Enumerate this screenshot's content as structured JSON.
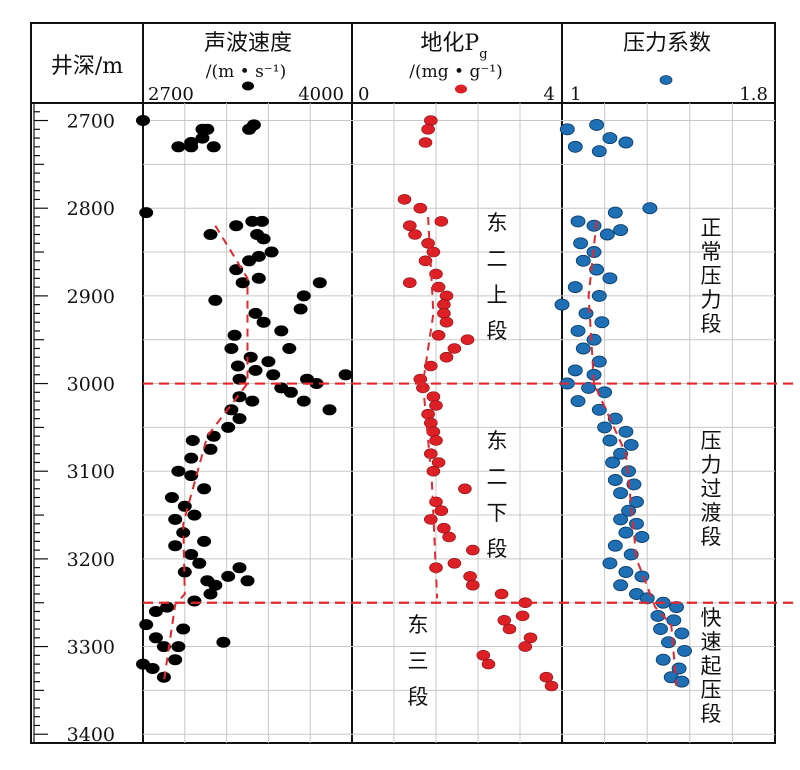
{
  "chart_data": [
    {
      "type": "scatter",
      "id": "velocity",
      "title": "声波速度",
      "unit": "/(m • s⁻¹)",
      "xlim": [
        2700,
        4000
      ],
      "tick_labels": [
        "2700",
        "4000"
      ],
      "marker_color": "#000000",
      "trend": [
        [
          3150,
          2820
        ],
        [
          3350,
          2880
        ],
        [
          3350,
          3000
        ],
        [
          3100,
          3060
        ],
        [
          2950,
          3160
        ],
        [
          2960,
          3240
        ],
        [
          2900,
          3252
        ],
        [
          2830,
          3340
        ]
      ],
      "points": [
        [
          2700,
          2700
        ],
        [
          3070,
          2710
        ],
        [
          3100,
          2710
        ],
        [
          3390,
          2705
        ],
        [
          3070,
          2720
        ],
        [
          2920,
          2730
        ],
        [
          3000,
          2730
        ],
        [
          3000,
          2725
        ],
        [
          3360,
          2710
        ],
        [
          3140,
          2730
        ],
        [
          2720,
          2805
        ],
        [
          3120,
          2830
        ],
        [
          3380,
          2815
        ],
        [
          3440,
          2815
        ],
        [
          3410,
          2830
        ],
        [
          3280,
          2820
        ],
        [
          3450,
          2835
        ],
        [
          3500,
          2850
        ],
        [
          3420,
          2855
        ],
        [
          3360,
          2860
        ],
        [
          3280,
          2870
        ],
        [
          3320,
          2885
        ],
        [
          3420,
          2880
        ],
        [
          3800,
          2885
        ],
        [
          3150,
          2905
        ],
        [
          3700,
          2900
        ],
        [
          3680,
          2915
        ],
        [
          3400,
          2920
        ],
        [
          3450,
          2930
        ],
        [
          3560,
          2940
        ],
        [
          3610,
          2960
        ],
        [
          3270,
          2945
        ],
        [
          3250,
          2960
        ],
        [
          3370,
          2970
        ],
        [
          3290,
          2980
        ],
        [
          3300,
          2995
        ],
        [
          3480,
          2975
        ],
        [
          3400,
          2985
        ],
        [
          3720,
          2995
        ],
        [
          3780,
          3000
        ],
        [
          3960,
          2990
        ],
        [
          3510,
          2990
        ],
        [
          3560,
          3005
        ],
        [
          3620,
          3010
        ],
        [
          3700,
          3020
        ],
        [
          3860,
          3030
        ],
        [
          3300,
          3015
        ],
        [
          3380,
          3020
        ],
        [
          3250,
          3030
        ],
        [
          3300,
          3040
        ],
        [
          3230,
          3050
        ],
        [
          3140,
          3060
        ],
        [
          3010,
          3065
        ],
        [
          3120,
          3075
        ],
        [
          3000,
          3085
        ],
        [
          2920,
          3100
        ],
        [
          3000,
          3105
        ],
        [
          3080,
          3120
        ],
        [
          2880,
          3130
        ],
        [
          2960,
          3140
        ],
        [
          3020,
          3150
        ],
        [
          2900,
          3155
        ],
        [
          2950,
          3170
        ],
        [
          3080,
          3180
        ],
        [
          2900,
          3185
        ],
        [
          3000,
          3195
        ],
        [
          3050,
          3205
        ],
        [
          2960,
          3215
        ],
        [
          3100,
          3225
        ],
        [
          3150,
          3230
        ],
        [
          3230,
          3220
        ],
        [
          3300,
          3210
        ],
        [
          3350,
          3225
        ],
        [
          3120,
          3240
        ],
        [
          3020,
          3248
        ],
        [
          2850,
          3255
        ],
        [
          2780,
          3260
        ],
        [
          2720,
          3275
        ],
        [
          2780,
          3290
        ],
        [
          2830,
          3300
        ],
        [
          2900,
          3315
        ],
        [
          2760,
          3325
        ],
        [
          2830,
          3335
        ],
        [
          2700,
          3320
        ],
        [
          2920,
          3300
        ],
        [
          3200,
          3295
        ],
        [
          2950,
          3280
        ]
      ]
    },
    {
      "type": "scatter",
      "id": "pg",
      "title": "地化P",
      "title_sub": "g",
      "unit": "/(mg • g⁻¹)",
      "xlim": [
        0,
        4
      ],
      "tick_labels": [
        "0",
        "4"
      ],
      "marker_color": "#dd1f26",
      "trend": [
        [
          1.45,
          2810
        ],
        [
          1.55,
          2920
        ],
        [
          1.35,
          3000
        ],
        [
          1.52,
          3110
        ],
        [
          1.62,
          3245
        ]
      ],
      "points": [
        [
          1.5,
          2700
        ],
        [
          1.45,
          2710
        ],
        [
          1.4,
          2725
        ],
        [
          1.0,
          2790
        ],
        [
          1.3,
          2800
        ],
        [
          1.7,
          2815
        ],
        [
          1.1,
          2820
        ],
        [
          1.2,
          2830
        ],
        [
          1.45,
          2840
        ],
        [
          1.55,
          2850
        ],
        [
          1.4,
          2860
        ],
        [
          1.6,
          2875
        ],
        [
          1.1,
          2885
        ],
        [
          1.65,
          2890
        ],
        [
          1.8,
          2900
        ],
        [
          1.75,
          2910
        ],
        [
          1.75,
          2920
        ],
        [
          1.8,
          2930
        ],
        [
          1.65,
          2945
        ],
        [
          2.2,
          2950
        ],
        [
          1.95,
          2960
        ],
        [
          1.8,
          2970
        ],
        [
          1.5,
          2980
        ],
        [
          1.3,
          2995
        ],
        [
          1.35,
          3005
        ],
        [
          1.55,
          3015
        ],
        [
          1.6,
          3025
        ],
        [
          1.45,
          3035
        ],
        [
          1.5,
          3045
        ],
        [
          1.55,
          3055
        ],
        [
          1.6,
          3065
        ],
        [
          1.5,
          3080
        ],
        [
          1.65,
          3090
        ],
        [
          1.55,
          3100
        ],
        [
          2.15,
          3120
        ],
        [
          1.6,
          3135
        ],
        [
          1.7,
          3145
        ],
        [
          1.5,
          3155
        ],
        [
          1.75,
          3165
        ],
        [
          1.85,
          3175
        ],
        [
          2.3,
          3190
        ],
        [
          1.95,
          3205
        ],
        [
          1.6,
          3210
        ],
        [
          2.25,
          3220
        ],
        [
          2.3,
          3230
        ],
        [
          2.85,
          3240
        ],
        [
          3.3,
          3250
        ],
        [
          3.25,
          3265
        ],
        [
          2.9,
          3270
        ],
        [
          3.0,
          3280
        ],
        [
          3.4,
          3290
        ],
        [
          3.3,
          3300
        ],
        [
          2.5,
          3310
        ],
        [
          2.6,
          3320
        ],
        [
          3.7,
          3335
        ],
        [
          3.8,
          3345
        ]
      ]
    },
    {
      "type": "scatter",
      "id": "pressure",
      "title": "压力系数",
      "xlim": [
        1,
        1.8
      ],
      "tick_labels": [
        "1",
        "1.8"
      ],
      "marker_color": "#1f6fb5",
      "trend": [
        [
          1.13,
          2815
        ],
        [
          1.1,
          2900
        ],
        [
          1.12,
          3000
        ],
        [
          1.24,
          3080
        ],
        [
          1.28,
          3200
        ],
        [
          1.35,
          3255
        ],
        [
          1.41,
          3275
        ],
        [
          1.43,
          3345
        ]
      ],
      "points": [
        [
          1.02,
          2710
        ],
        [
          1.13,
          2705
        ],
        [
          1.18,
          2720
        ],
        [
          1.24,
          2725
        ],
        [
          1.05,
          2730
        ],
        [
          1.14,
          2735
        ],
        [
          1.2,
          2805
        ],
        [
          1.33,
          2800
        ],
        [
          1.06,
          2815
        ],
        [
          1.12,
          2820
        ],
        [
          1.17,
          2830
        ],
        [
          1.22,
          2825
        ],
        [
          1.07,
          2840
        ],
        [
          1.12,
          2850
        ],
        [
          1.08,
          2860
        ],
        [
          1.13,
          2870
        ],
        [
          1.18,
          2880
        ],
        [
          1.05,
          2890
        ],
        [
          1.14,
          2900
        ],
        [
          1.0,
          2910
        ],
        [
          1.09,
          2920
        ],
        [
          1.15,
          2930
        ],
        [
          1.06,
          2940
        ],
        [
          1.12,
          2950
        ],
        [
          1.08,
          2960
        ],
        [
          1.14,
          2975
        ],
        [
          1.05,
          2985
        ],
        [
          1.12,
          2990
        ],
        [
          1.02,
          3000
        ],
        [
          1.1,
          3005
        ],
        [
          1.16,
          3010
        ],
        [
          1.06,
          3020
        ],
        [
          1.14,
          3030
        ],
        [
          1.2,
          3040
        ],
        [
          1.16,
          3050
        ],
        [
          1.24,
          3055
        ],
        [
          1.18,
          3065
        ],
        [
          1.26,
          3070
        ],
        [
          1.22,
          3080
        ],
        [
          1.19,
          3090
        ],
        [
          1.25,
          3100
        ],
        [
          1.2,
          3110
        ],
        [
          1.27,
          3115
        ],
        [
          1.22,
          3125
        ],
        [
          1.28,
          3135
        ],
        [
          1.25,
          3145
        ],
        [
          1.22,
          3155
        ],
        [
          1.28,
          3160
        ],
        [
          1.24,
          3170
        ],
        [
          1.3,
          3175
        ],
        [
          1.2,
          3185
        ],
        [
          1.26,
          3195
        ],
        [
          1.18,
          3205
        ],
        [
          1.24,
          3215
        ],
        [
          1.3,
          3220
        ],
        [
          1.22,
          3230
        ],
        [
          1.28,
          3240
        ],
        [
          1.32,
          3245
        ],
        [
          1.38,
          3250
        ],
        [
          1.43,
          3255
        ],
        [
          1.36,
          3265
        ],
        [
          1.42,
          3270
        ],
        [
          1.37,
          3280
        ],
        [
          1.45,
          3285
        ],
        [
          1.4,
          3295
        ],
        [
          1.46,
          3305
        ],
        [
          1.38,
          3315
        ],
        [
          1.44,
          3325
        ],
        [
          1.41,
          3335
        ],
        [
          1.45,
          3340
        ]
      ]
    }
  ],
  "depth_axis": {
    "label": "井深/m",
    "range": [
      2680,
      3410
    ],
    "ticks": [
      "2700",
      "2800",
      "2900",
      "3000",
      "3100",
      "3200",
      "3300",
      "3400"
    ]
  },
  "legend_markers": [
    "velocity",
    "pg",
    "pressure"
  ],
  "boundaries": [
    3000,
    3250
  ],
  "zones": {
    "formations": [
      {
        "chars": [
          "东",
          "二",
          "上",
          "段"
        ]
      },
      {
        "chars": [
          "东",
          "二",
          "下",
          "段"
        ]
      },
      {
        "chars": [
          "东",
          "三",
          "段"
        ]
      }
    ],
    "pressure_segments": [
      {
        "chars": [
          "正",
          "常",
          "压",
          "力",
          "段"
        ]
      },
      {
        "chars": [
          "压",
          "力",
          "过",
          "渡",
          "段"
        ]
      },
      {
        "chars": [
          "快",
          "速",
          "起",
          "压",
          "段"
        ]
      }
    ]
  },
  "colors": {
    "boundary_line": "#e0282e",
    "trend_line": "#e0282e",
    "grid": "#c8c8c8",
    "frame": "#111111"
  }
}
